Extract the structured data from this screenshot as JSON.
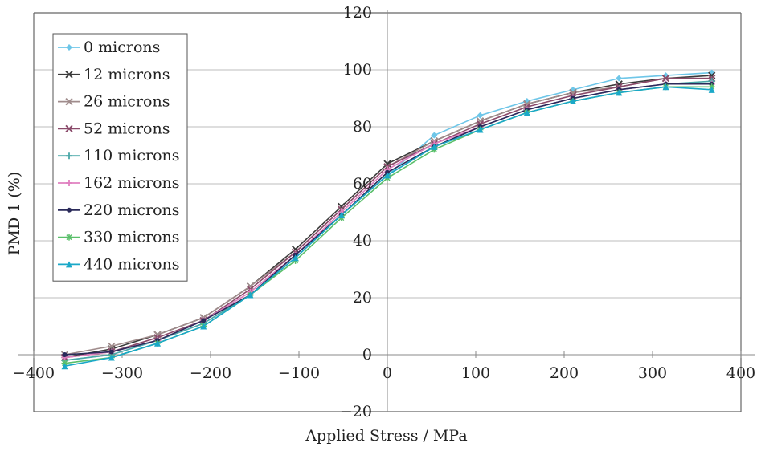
{
  "chart_data": {
    "type": "line",
    "xlabel": "Applied Stress / MPa",
    "ylabel": "PMD 1 (%)",
    "xlim": [
      -400,
      400
    ],
    "ylim": [
      -20,
      120
    ],
    "xticks": [
      -400,
      -300,
      -200,
      -100,
      0,
      100,
      200,
      300,
      400
    ],
    "yticks": [
      -20,
      0,
      20,
      40,
      60,
      80,
      100,
      120
    ],
    "xtick_labels": [
      "−400",
      "−300",
      "−200",
      "−100",
      "0",
      "100",
      "200",
      "300",
      "400"
    ],
    "ytick_labels": [
      "−20",
      "0",
      "20",
      "40",
      "60",
      "80",
      "100",
      "120"
    ],
    "grid": "horizontal",
    "legend_position": "top-left",
    "x": [
      -365,
      -312,
      -260,
      -208,
      -155,
      -104,
      -52,
      0,
      53,
      105,
      158,
      210,
      262,
      315,
      367
    ],
    "series": [
      {
        "name": "0 microns",
        "color": "#6ec6e8",
        "marker": "diamond",
        "values": [
          -2,
          0,
          5,
          11,
          21,
          35,
          49,
          63,
          77,
          84,
          89,
          93,
          97,
          98,
          99
        ]
      },
      {
        "name": "12 microns",
        "color": "#3a3a3a",
        "marker": "x",
        "values": [
          -1,
          2,
          7,
          13,
          24,
          37,
          52,
          67,
          75,
          82,
          88,
          92,
          95,
          97,
          98
        ]
      },
      {
        "name": "26 microns",
        "color": "#a08c8c",
        "marker": "x",
        "values": [
          0,
          3,
          7,
          13,
          24,
          36,
          51,
          66,
          75,
          82,
          88,
          92,
          94,
          97,
          97
        ]
      },
      {
        "name": "52 microns",
        "color": "#8a4a6a",
        "marker": "x",
        "values": [
          -1,
          1,
          6,
          12,
          23,
          36,
          51,
          66,
          74,
          81,
          87,
          91,
          94,
          97,
          97
        ]
      },
      {
        "name": "110 microns",
        "color": "#4aa8a8",
        "marker": "plus",
        "values": [
          -2,
          0,
          5,
          11,
          21,
          34,
          49,
          63,
          73,
          80,
          86,
          90,
          93,
          95,
          96
        ]
      },
      {
        "name": "162 microns",
        "color": "#e080c0",
        "marker": "plus",
        "values": [
          -1,
          1,
          5,
          12,
          22,
          35,
          50,
          65,
          74,
          80,
          86,
          90,
          93,
          95,
          95
        ]
      },
      {
        "name": "220 microns",
        "color": "#2a2a5a",
        "marker": "dot",
        "values": [
          0,
          1,
          5,
          12,
          21,
          35,
          49,
          64,
          73,
          80,
          86,
          90,
          93,
          95,
          95
        ]
      },
      {
        "name": "330 microns",
        "color": "#5abf6a",
        "marker": "asterisk",
        "values": [
          -3,
          -1,
          4,
          10,
          21,
          33,
          48,
          62,
          72,
          79,
          85,
          89,
          92,
          94,
          94
        ]
      },
      {
        "name": "440 microns",
        "color": "#1aa8c8",
        "marker": "triangle",
        "values": [
          -4,
          -1,
          4,
          10,
          21,
          34,
          49,
          63,
          73,
          79,
          85,
          89,
          92,
          94,
          93
        ]
      }
    ]
  }
}
